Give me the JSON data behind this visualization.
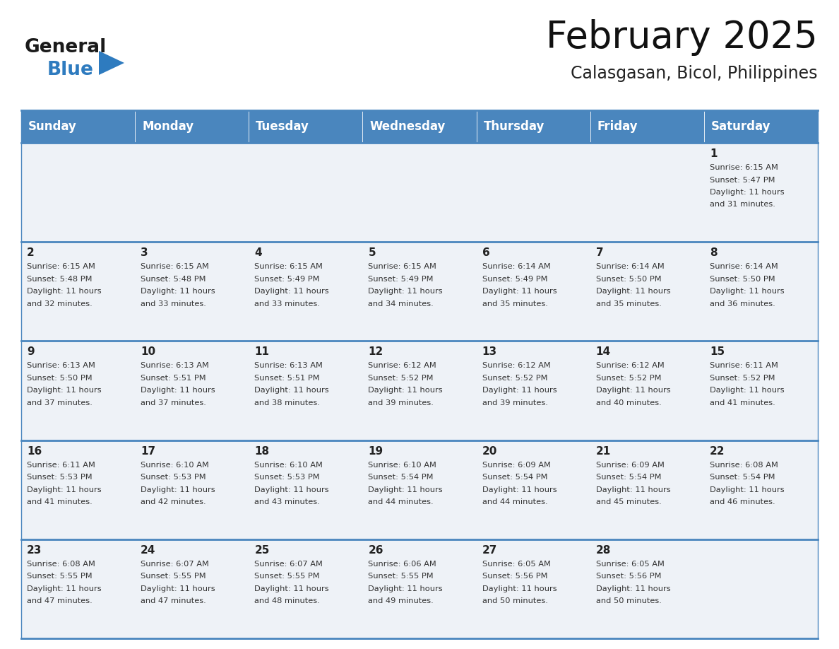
{
  "title": "February 2025",
  "subtitle": "Calasgasan, Bicol, Philippines",
  "header_color": "#4a86be",
  "header_text_color": "#ffffff",
  "cell_bg_row0": "#eef2f7",
  "cell_bg_row1": "#eef2f7",
  "cell_bg_row2": "#eef2f7",
  "cell_bg_row3": "#eef2f7",
  "cell_bg_row4": "#eef2f7",
  "border_color": "#4a86be",
  "day_headers": [
    "Sunday",
    "Monday",
    "Tuesday",
    "Wednesday",
    "Thursday",
    "Friday",
    "Saturday"
  ],
  "title_fontsize": 38,
  "subtitle_fontsize": 17,
  "header_fontsize": 12,
  "day_num_fontsize": 11,
  "info_fontsize": 8.2,
  "logo_general_color": "#1a1a1a",
  "logo_blue_color": "#2e7bbf",
  "days": [
    {
      "day": 1,
      "col": 6,
      "row": 0,
      "sunrise": "6:15 AM",
      "sunset": "5:47 PM",
      "daylight": "11 hours and 31 minutes"
    },
    {
      "day": 2,
      "col": 0,
      "row": 1,
      "sunrise": "6:15 AM",
      "sunset": "5:48 PM",
      "daylight": "11 hours and 32 minutes"
    },
    {
      "day": 3,
      "col": 1,
      "row": 1,
      "sunrise": "6:15 AM",
      "sunset": "5:48 PM",
      "daylight": "11 hours and 33 minutes"
    },
    {
      "day": 4,
      "col": 2,
      "row": 1,
      "sunrise": "6:15 AM",
      "sunset": "5:49 PM",
      "daylight": "11 hours and 33 minutes"
    },
    {
      "day": 5,
      "col": 3,
      "row": 1,
      "sunrise": "6:15 AM",
      "sunset": "5:49 PM",
      "daylight": "11 hours and 34 minutes"
    },
    {
      "day": 6,
      "col": 4,
      "row": 1,
      "sunrise": "6:14 AM",
      "sunset": "5:49 PM",
      "daylight": "11 hours and 35 minutes"
    },
    {
      "day": 7,
      "col": 5,
      "row": 1,
      "sunrise": "6:14 AM",
      "sunset": "5:50 PM",
      "daylight": "11 hours and 35 minutes"
    },
    {
      "day": 8,
      "col": 6,
      "row": 1,
      "sunrise": "6:14 AM",
      "sunset": "5:50 PM",
      "daylight": "11 hours and 36 minutes"
    },
    {
      "day": 9,
      "col": 0,
      "row": 2,
      "sunrise": "6:13 AM",
      "sunset": "5:50 PM",
      "daylight": "11 hours and 37 minutes"
    },
    {
      "day": 10,
      "col": 1,
      "row": 2,
      "sunrise": "6:13 AM",
      "sunset": "5:51 PM",
      "daylight": "11 hours and 37 minutes"
    },
    {
      "day": 11,
      "col": 2,
      "row": 2,
      "sunrise": "6:13 AM",
      "sunset": "5:51 PM",
      "daylight": "11 hours and 38 minutes"
    },
    {
      "day": 12,
      "col": 3,
      "row": 2,
      "sunrise": "6:12 AM",
      "sunset": "5:52 PM",
      "daylight": "11 hours and 39 minutes"
    },
    {
      "day": 13,
      "col": 4,
      "row": 2,
      "sunrise": "6:12 AM",
      "sunset": "5:52 PM",
      "daylight": "11 hours and 39 minutes"
    },
    {
      "day": 14,
      "col": 5,
      "row": 2,
      "sunrise": "6:12 AM",
      "sunset": "5:52 PM",
      "daylight": "11 hours and 40 minutes"
    },
    {
      "day": 15,
      "col": 6,
      "row": 2,
      "sunrise": "6:11 AM",
      "sunset": "5:52 PM",
      "daylight": "11 hours and 41 minutes"
    },
    {
      "day": 16,
      "col": 0,
      "row": 3,
      "sunrise": "6:11 AM",
      "sunset": "5:53 PM",
      "daylight": "11 hours and 41 minutes"
    },
    {
      "day": 17,
      "col": 1,
      "row": 3,
      "sunrise": "6:10 AM",
      "sunset": "5:53 PM",
      "daylight": "11 hours and 42 minutes"
    },
    {
      "day": 18,
      "col": 2,
      "row": 3,
      "sunrise": "6:10 AM",
      "sunset": "5:53 PM",
      "daylight": "11 hours and 43 minutes"
    },
    {
      "day": 19,
      "col": 3,
      "row": 3,
      "sunrise": "6:10 AM",
      "sunset": "5:54 PM",
      "daylight": "11 hours and 44 minutes"
    },
    {
      "day": 20,
      "col": 4,
      "row": 3,
      "sunrise": "6:09 AM",
      "sunset": "5:54 PM",
      "daylight": "11 hours and 44 minutes"
    },
    {
      "day": 21,
      "col": 5,
      "row": 3,
      "sunrise": "6:09 AM",
      "sunset": "5:54 PM",
      "daylight": "11 hours and 45 minutes"
    },
    {
      "day": 22,
      "col": 6,
      "row": 3,
      "sunrise": "6:08 AM",
      "sunset": "5:54 PM",
      "daylight": "11 hours and 46 minutes"
    },
    {
      "day": 23,
      "col": 0,
      "row": 4,
      "sunrise": "6:08 AM",
      "sunset": "5:55 PM",
      "daylight": "11 hours and 47 minutes"
    },
    {
      "day": 24,
      "col": 1,
      "row": 4,
      "sunrise": "6:07 AM",
      "sunset": "5:55 PM",
      "daylight": "11 hours and 47 minutes"
    },
    {
      "day": 25,
      "col": 2,
      "row": 4,
      "sunrise": "6:07 AM",
      "sunset": "5:55 PM",
      "daylight": "11 hours and 48 minutes"
    },
    {
      "day": 26,
      "col": 3,
      "row": 4,
      "sunrise": "6:06 AM",
      "sunset": "5:55 PM",
      "daylight": "11 hours and 49 minutes"
    },
    {
      "day": 27,
      "col": 4,
      "row": 4,
      "sunrise": "6:05 AM",
      "sunset": "5:56 PM",
      "daylight": "11 hours and 50 minutes"
    },
    {
      "day": 28,
      "col": 5,
      "row": 4,
      "sunrise": "6:05 AM",
      "sunset": "5:56 PM",
      "daylight": "11 hours and 50 minutes"
    }
  ]
}
